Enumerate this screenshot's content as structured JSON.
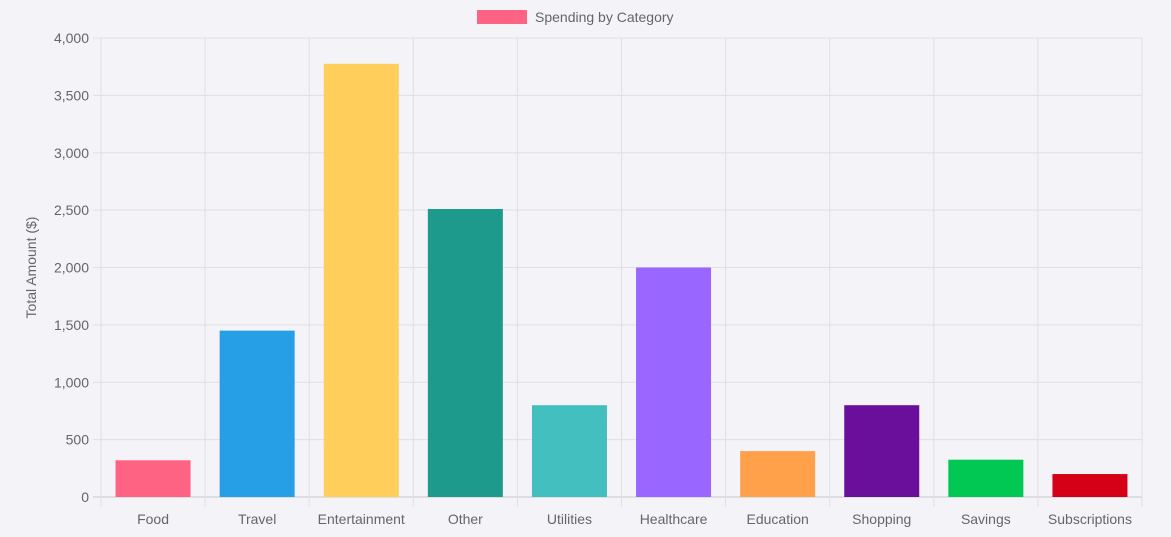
{
  "chart_data": {
    "type": "bar",
    "categories": [
      "Food",
      "Travel",
      "Entertainment",
      "Other",
      "Utilities",
      "Healthcare",
      "Education",
      "Shopping",
      "Savings",
      "Subscriptions"
    ],
    "series": [
      {
        "name": "Spending by Category",
        "values": [
          320,
          1450,
          3775,
          2510,
          800,
          2000,
          400,
          800,
          325,
          200
        ],
        "colors": [
          "#ff6384",
          "#279fe6",
          "#ffce5b",
          "#1e9a8d",
          "#42bfbe",
          "#9966ff",
          "#ffa04a",
          "#6a0e9c",
          "#00c853",
          "#d50017"
        ]
      }
    ],
    "legend_color": "#ff6384",
    "legend_position": "top",
    "ylabel": "Total Amount ($)",
    "xlabel": "",
    "ylim": [
      0,
      4000
    ],
    "y_ticks": [
      0,
      500,
      1000,
      1500,
      2000,
      2500,
      3000,
      3500,
      4000
    ],
    "y_tick_labels": [
      "0",
      "500",
      "1,000",
      "1,500",
      "2,000",
      "2,500",
      "3,000",
      "3,500",
      "4,000"
    ],
    "grid": true
  }
}
